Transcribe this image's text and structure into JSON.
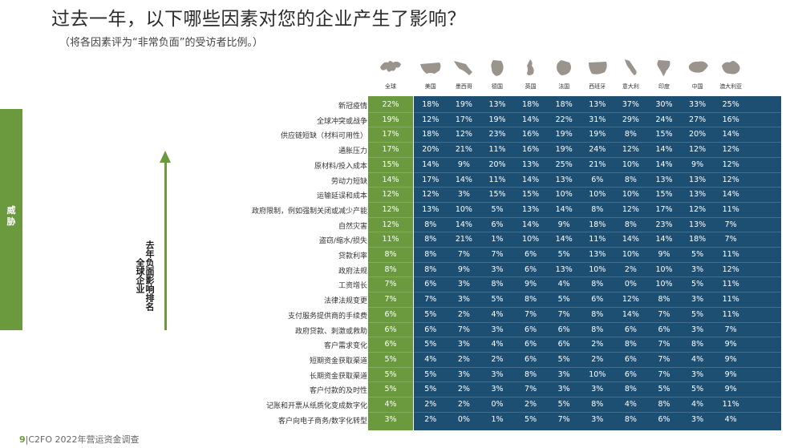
{
  "header": {
    "title": "过去一年，以下哪些因素对您的企业产生了影响？",
    "subtitle": "（将各因素评为“非常负面”的受访者比例。）"
  },
  "side": {
    "threat": "威胁",
    "rank_line1": "去年负面影响排名",
    "rank_line2": "全球企业"
  },
  "countries": [
    {
      "label": "全球",
      "icon": "world-map-icon"
    },
    {
      "label": "美国",
      "icon": "usa-map-icon"
    },
    {
      "label": "墨西哥",
      "icon": "mexico-map-icon"
    },
    {
      "label": "德国",
      "icon": "germany-map-icon"
    },
    {
      "label": "英国",
      "icon": "uk-map-icon"
    },
    {
      "label": "法国",
      "icon": "france-map-icon"
    },
    {
      "label": "西班牙",
      "icon": "spain-map-icon"
    },
    {
      "label": "意大利",
      "icon": "italy-map-icon"
    },
    {
      "label": "印度",
      "icon": "india-map-icon"
    },
    {
      "label": "中国",
      "icon": "china-map-icon"
    },
    {
      "label": "澳大利亚",
      "icon": "australia-map-icon"
    }
  ],
  "rows": [
    {
      "label": "新冠疫情",
      "values": [
        "22%",
        "18%",
        "19%",
        "13%",
        "18%",
        "18%",
        "13%",
        "37%",
        "30%",
        "33%",
        "25%"
      ]
    },
    {
      "label": "全球冲突或战争",
      "values": [
        "19%",
        "12%",
        "17%",
        "19%",
        "14%",
        "22%",
        "31%",
        "29%",
        "24%",
        "27%",
        "16%"
      ]
    },
    {
      "label": "供应链短缺（材料可用性）",
      "values": [
        "17%",
        "18%",
        "12%",
        "23%",
        "16%",
        "19%",
        "19%",
        "8%",
        "15%",
        "20%",
        "14%"
      ]
    },
    {
      "label": "通胀压力",
      "values": [
        "17%",
        "20%",
        "21%",
        "11%",
        "16%",
        "19%",
        "24%",
        "12%",
        "14%",
        "12%",
        "12%"
      ]
    },
    {
      "label": "原材料/投入成本",
      "values": [
        "15%",
        "14%",
        "9%",
        "20%",
        "13%",
        "25%",
        "21%",
        "10%",
        "14%",
        "9%",
        "12%"
      ]
    },
    {
      "label": "劳动力短缺",
      "values": [
        "14%",
        "17%",
        "14%",
        "11%",
        "14%",
        "13%",
        "6%",
        "8%",
        "13%",
        "13%",
        "12%"
      ]
    },
    {
      "label": "运输延误和成本",
      "values": [
        "12%",
        "12%",
        "3%",
        "15%",
        "15%",
        "10%",
        "10%",
        "10%",
        "15%",
        "13%",
        "14%"
      ]
    },
    {
      "label": "政府限制，例如强制关闭或减少产能",
      "values": [
        "12%",
        "13%",
        "10%",
        "5%",
        "13%",
        "14%",
        "8%",
        "12%",
        "17%",
        "12%",
        "11%"
      ]
    },
    {
      "label": "自然灾害",
      "values": [
        "12%",
        "8%",
        "14%",
        "6%",
        "14%",
        "9%",
        "18%",
        "8%",
        "23%",
        "13%",
        "7%"
      ]
    },
    {
      "label": "盗窃/缩水/损失",
      "values": [
        "11%",
        "8%",
        "21%",
        "1%",
        "10%",
        "14%",
        "11%",
        "14%",
        "14%",
        "18%",
        "7%"
      ]
    },
    {
      "label": "贷款利率",
      "values": [
        "8%",
        "8%",
        "7%",
        "7%",
        "6%",
        "5%",
        "13%",
        "10%",
        "9%",
        "5%",
        "11%"
      ]
    },
    {
      "label": "政府法规",
      "values": [
        "8%",
        "8%",
        "9%",
        "3%",
        "6%",
        "13%",
        "10%",
        "2%",
        "10%",
        "3%",
        "12%"
      ]
    },
    {
      "label": "工资增长",
      "values": [
        "7%",
        "6%",
        "3%",
        "8%",
        "9%",
        "4%",
        "8%",
        "0%",
        "10%",
        "5%",
        "11%"
      ]
    },
    {
      "label": "法律法规变更",
      "values": [
        "7%",
        "7%",
        "3%",
        "5%",
        "8%",
        "5%",
        "6%",
        "12%",
        "8%",
        "3%",
        "11%"
      ]
    },
    {
      "label": "支付服务提供商的手续费",
      "values": [
        "6%",
        "5%",
        "2%",
        "4%",
        "7%",
        "7%",
        "8%",
        "14%",
        "7%",
        "5%",
        "11%"
      ]
    },
    {
      "label": "政府贷款、刺激或救助",
      "values": [
        "6%",
        "6%",
        "7%",
        "3%",
        "6%",
        "6%",
        "8%",
        "6%",
        "6%",
        "3%",
        "7%"
      ]
    },
    {
      "label": "客户需求变化",
      "values": [
        "6%",
        "5%",
        "3%",
        "4%",
        "6%",
        "6%",
        "2%",
        "8%",
        "7%",
        "8%",
        "9%"
      ]
    },
    {
      "label": "短期资金获取渠道",
      "values": [
        "5%",
        "4%",
        "2%",
        "2%",
        "6%",
        "5%",
        "2%",
        "6%",
        "7%",
        "4%",
        "9%"
      ]
    },
    {
      "label": "长期资金获取渠道",
      "values": [
        "5%",
        "5%",
        "3%",
        "3%",
        "8%",
        "3%",
        "10%",
        "6%",
        "7%",
        "3%",
        "9%"
      ]
    },
    {
      "label": "客户付款的及时性",
      "values": [
        "5%",
        "5%",
        "2%",
        "3%",
        "7%",
        "3%",
        "3%",
        "8%",
        "5%",
        "5%",
        "9%"
      ]
    },
    {
      "label": "记账和开票从纸质化变成数字化",
      "values": [
        "4%",
        "2%",
        "2%",
        "0%",
        "2%",
        "5%",
        "8%",
        "4%",
        "8%",
        "4%",
        "11%"
      ]
    },
    {
      "label": "客户向电子商务/数字化转型",
      "values": [
        "3%",
        "2%",
        "0%",
        "1%",
        "5%",
        "7%",
        "3%",
        "8%",
        "6%",
        "3%",
        "4%"
      ]
    }
  ],
  "footer": {
    "page": "9",
    "text": "C2FO 2022年营运资金调查"
  },
  "colors": {
    "green": "#6a9a3d",
    "blue": "#1d4f73",
    "map_gray": "#9b948c"
  }
}
